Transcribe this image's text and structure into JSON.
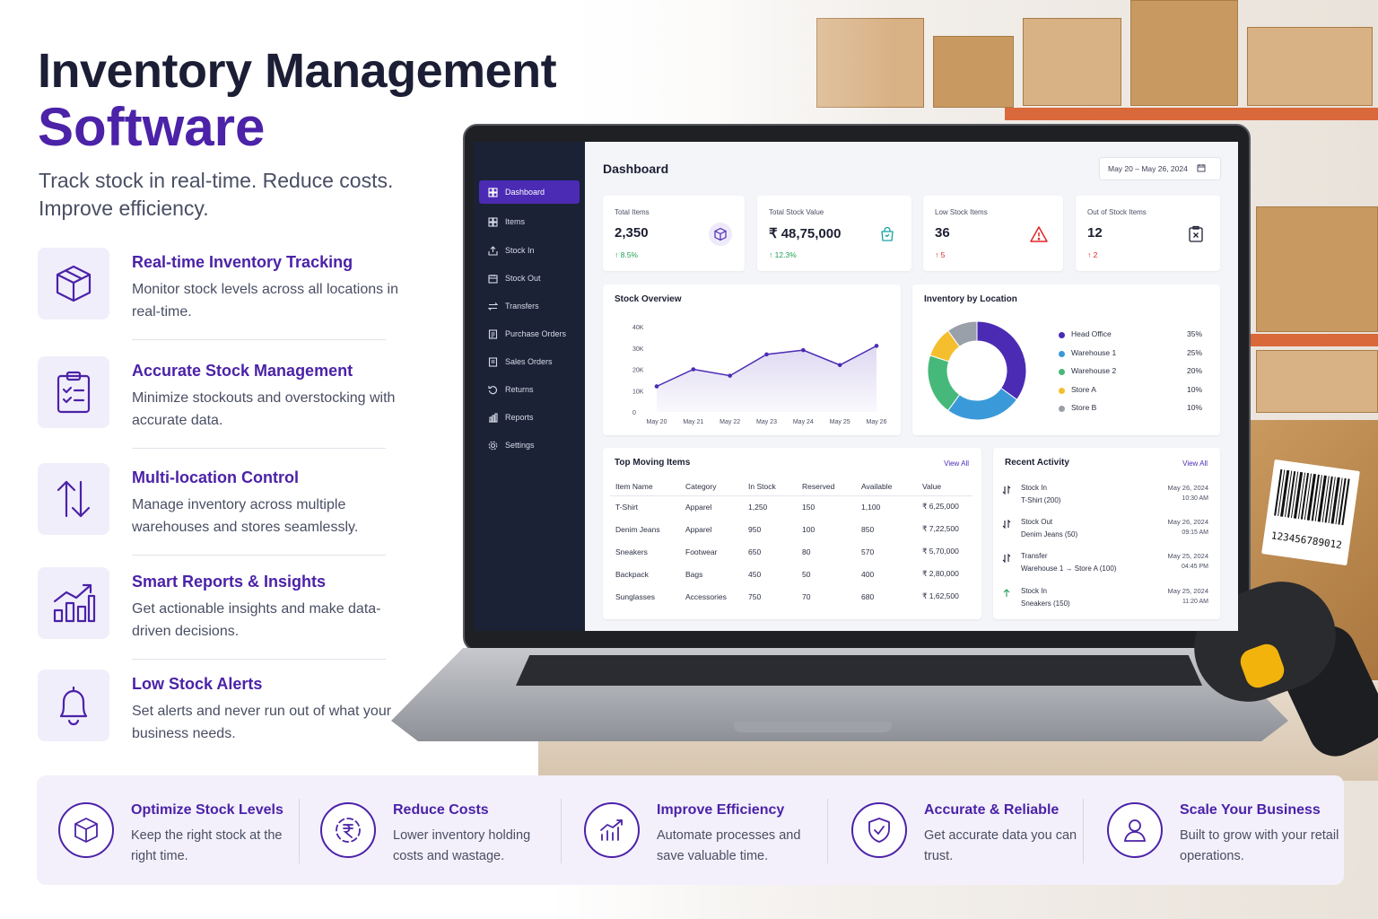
{
  "hero": {
    "title_line1": "Inventory Management",
    "title_line2": "Software",
    "subtitle": "Track stock in real-time. Reduce costs. Improve efficiency."
  },
  "features": [
    {
      "icon": "box-icon",
      "title": "Real-time Inventory Tracking",
      "desc": "Monitor stock levels across all locations in real-time."
    },
    {
      "icon": "clipboard-checklist-icon",
      "title": "Accurate Stock Management",
      "desc": "Minimize stockouts and overstocking with accurate data."
    },
    {
      "icon": "transfer-arrows-icon",
      "title": "Multi-location Control",
      "desc": "Manage inventory across multiple warehouses and stores seamlessly."
    },
    {
      "icon": "growth-chart-icon",
      "title": "Smart Reports & Insights",
      "desc": "Get actionable insights and make data-driven decisions."
    },
    {
      "icon": "bell-icon",
      "title": "Low Stock Alerts",
      "desc": "Set alerts and never run out of what your business needs."
    }
  ],
  "app": {
    "sidebar": [
      {
        "label": "Dashboard",
        "icon": "dashboard-icon",
        "active": true
      },
      {
        "label": "Items",
        "icon": "grid-icon"
      },
      {
        "label": "Stock In",
        "icon": "stock-in-icon"
      },
      {
        "label": "Stock Out",
        "icon": "stock-out-icon"
      },
      {
        "label": "Transfers",
        "icon": "transfer-icon"
      },
      {
        "label": "Purchase Orders",
        "icon": "purchase-order-icon"
      },
      {
        "label": "Sales Orders",
        "icon": "sales-order-icon"
      },
      {
        "label": "Returns",
        "icon": "returns-icon"
      },
      {
        "label": "Reports",
        "icon": "reports-icon"
      },
      {
        "label": "Settings",
        "icon": "settings-icon"
      }
    ],
    "page_title": "Dashboard",
    "date_range": "May 20 – May 26, 2024",
    "kpis": [
      {
        "label": "Total Items",
        "value": "2,350",
        "delta": "↑ 8.5%",
        "color": "#1f9d55",
        "icon": "cube-icon"
      },
      {
        "label": "Total Stock Value",
        "value": "₹ 48,75,000",
        "delta": "↑ 12.3%",
        "color": "#1f9d55",
        "icon": "shopping-bag-icon"
      },
      {
        "label": "Low Stock Items",
        "value": "36",
        "delta": "↑ 5",
        "color": "#e02424",
        "icon": "warning-icon"
      },
      {
        "label": "Out of Stock Items",
        "value": "12",
        "delta": "↑ 2",
        "color": "#e02424",
        "icon": "out-of-stock-icon"
      }
    ],
    "stock_overview": {
      "title": "Stock Overview"
    },
    "location": {
      "title": "Inventory by Location"
    },
    "top_items": {
      "title": "Top Moving Items",
      "view_all": "View All",
      "columns": [
        "Item Name",
        "Category",
        "In Stock",
        "Reserved",
        "Available",
        "Value"
      ],
      "rows": [
        [
          "T-Shirt",
          "Apparel",
          "1,250",
          "150",
          "1,100",
          "₹ 6,25,000"
        ],
        [
          "Denim Jeans",
          "Apparel",
          "950",
          "100",
          "850",
          "₹ 7,22,500"
        ],
        [
          "Sneakers",
          "Footwear",
          "650",
          "80",
          "570",
          "₹ 5,70,000"
        ],
        [
          "Backpack",
          "Bags",
          "450",
          "50",
          "400",
          "₹ 2,80,000"
        ],
        [
          "Sunglasses",
          "Accessories",
          "750",
          "70",
          "680",
          "₹ 1,62,500"
        ]
      ]
    },
    "activity": {
      "title": "Recent Activity",
      "view_all": "View All",
      "items": [
        {
          "type": "Stock In",
          "detail": "T-Shirt (200)",
          "date": "May 26, 2024",
          "time": "10:30 AM",
          "icon": "stock-in-icon"
        },
        {
          "type": "Stock Out",
          "detail": "Denim Jeans (50)",
          "date": "May 26, 2024",
          "time": "09:15 AM",
          "icon": "stock-out-icon"
        },
        {
          "type": "Transfer",
          "detail": "Warehouse 1 → Store A (100)",
          "date": "May 25, 2024",
          "time": "04:45 PM",
          "icon": "transfer-icon"
        },
        {
          "type": "Stock In",
          "detail": "Sneakers (150)",
          "date": "May 25, 2024",
          "time": "11:20 AM",
          "icon": "stock-in-icon"
        }
      ]
    }
  },
  "chart_data": [
    {
      "type": "area",
      "title": "Stock Overview",
      "x": [
        "May 20",
        "May 21",
        "May 22",
        "May 23",
        "May 24",
        "May 25",
        "May 26"
      ],
      "series": [
        {
          "values": [
            12000,
            20000,
            17000,
            27000,
            29000,
            22000,
            31000
          ]
        }
      ],
      "ylim": [
        0,
        40000
      ],
      "yticks": [
        "0",
        "10K",
        "20K",
        "30K",
        "40K"
      ],
      "color": "#4b2bb4"
    },
    {
      "type": "pie",
      "title": "Inventory by Location",
      "labels": [
        "Head Office",
        "Warehouse 1",
        "Warehouse 2",
        "Store A",
        "Store B"
      ],
      "values": [
        35,
        25,
        20,
        10,
        10
      ],
      "display": [
        "35%",
        "25%",
        "20%",
        "10%",
        "10%"
      ],
      "colors": [
        "#4b2bb4",
        "#3a9ad9",
        "#46b97a",
        "#f5be2e",
        "#9aa0aa"
      ],
      "donut": true
    }
  ],
  "benefits": [
    {
      "icon": "box-icon",
      "title": "Optimize Stock Levels",
      "desc": "Keep the right stock at the right time."
    },
    {
      "icon": "rupee-savings-icon",
      "title": "Reduce Costs",
      "desc": "Lower inventory holding costs and wastage."
    },
    {
      "icon": "growth-chart-icon",
      "title": "Improve Efficiency",
      "desc": "Automate processes and save valuable time."
    },
    {
      "icon": "shield-check-icon",
      "title": "Accurate & Reliable",
      "desc": "Get accurate data you can trust."
    },
    {
      "icon": "user-icon",
      "title": "Scale Your Business",
      "desc": "Built to grow with your retail operations."
    }
  ],
  "barcode_number": "123456789012",
  "colors": {
    "brand": "#4b22a8",
    "sidebar": "#1b2236",
    "positive": "#1f9d55",
    "negative": "#e02424"
  }
}
